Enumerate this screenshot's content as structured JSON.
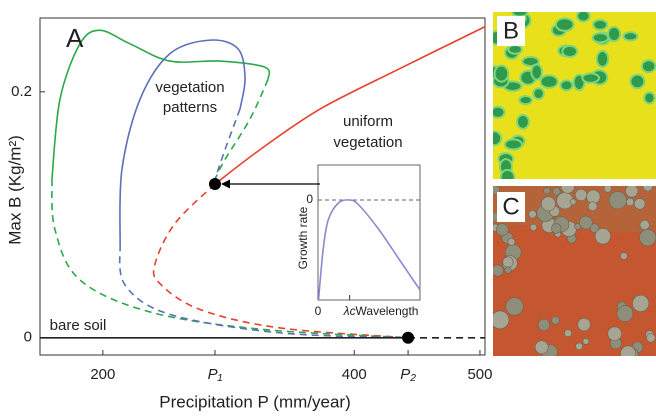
{
  "chart_data": [
    {
      "type": "line",
      "panel_label": "A",
      "x_label": "Precipitation P (mm/year)",
      "y_label": "Max B (Kg/m²)",
      "xlim": [
        150,
        504
      ],
      "ylim": [
        -0.014,
        0.26
      ],
      "xticks": [
        200,
        {
          "value": 289.2,
          "label": "P₁"
        },
        400,
        {
          "value": 442.8,
          "label": "P₂"
        },
        500
      ],
      "yticks": [
        0,
        0.2
      ],
      "annotations": [
        "vegetation",
        "patterns",
        "uniform",
        "vegetation",
        "bare soil"
      ],
      "series": [
        {
          "color": "#e8402c",
          "dashed": false,
          "x": [
            289.2,
            325.1,
            372.8,
            436.5,
            504.1
          ],
          "values": [
            0.125,
            0.153,
            0.186,
            0.219,
            0.253
          ]
        },
        {
          "color": "#e8402c",
          "dashed": true,
          "x": [
            289.2,
            257.4,
            241.5,
            245.5,
            277.3,
            341,
            442.8
          ],
          "values": [
            0.125,
            0.093,
            0.06,
            0.044,
            0.023,
            0.008,
            0
          ]
        },
        {
          "color": "#2aa84a",
          "dashed": false,
          "x": [
            159.5,
            165.9,
            181.8,
            197.7,
            221.6,
            253.4,
            293.2,
            329.0,
            331.4
          ],
          "values": [
            0.129,
            0.194,
            0.239,
            0.25,
            0.239,
            0.225,
            0.225,
            0.22,
            0.21
          ]
        },
        {
          "color": "#2aa84a",
          "dashed": true,
          "x": [
            331.4,
            317.1,
            297.2,
            289.2
          ],
          "values": [
            0.21,
            0.178,
            0.145,
            0.129
          ]
        },
        {
          "color": "#2aa84a",
          "dashed": true,
          "x": [
            159.5,
            161.9,
            181.8,
            237.5,
            325.1,
            442.8
          ],
          "values": [
            0.129,
            0.088,
            0.047,
            0.021,
            0.007,
            0
          ]
        },
        {
          "color": "#5b70b8",
          "dashed": false,
          "x": [
            213.7,
            215.2,
            229.6,
            253.4,
            285.3,
            307.5,
            313.1,
            309.1
          ],
          "values": [
            0.076,
            0.137,
            0.194,
            0.231,
            0.242,
            0.235,
            0.211,
            0.186
          ]
        },
        {
          "color": "#5b70b8",
          "dashed": true,
          "x": [
            309.1,
            297.2,
            289.2
          ],
          "values": [
            0.186,
            0.153,
            0.129
          ]
        },
        {
          "color": "#5b70b8",
          "dashed": true,
          "x": [
            213.7,
            217.6,
            253.4,
            341,
            442.8
          ],
          "values": [
            0.076,
            0.043,
            0.019,
            0.004,
            0
          ]
        },
        {
          "color": "#222222",
          "dashed": false,
          "x": [
            150,
            442.8
          ],
          "values": [
            0,
            0
          ]
        },
        {
          "color": "#222222",
          "dashed": true,
          "x": [
            442.8,
            504.1
          ],
          "values": [
            0,
            0
          ]
        }
      ],
      "markers": {
        "color": "#000000",
        "x": [
          289.2,
          442.8
        ],
        "values": [
          0.125,
          0
        ]
      }
    },
    {
      "type": "line",
      "x_label": "Wavelength",
      "y_label": "Growth rate",
      "xlim": [
        0,
        10
      ],
      "ylim": [
        -1,
        0.35
      ],
      "xticks": [
        0,
        {
          "value": 3.1,
          "label": "λc"
        }
      ],
      "yticks": [
        0
      ],
      "series": [
        {
          "color": "#8a8ad0",
          "dashed": false,
          "x": [
            0.05,
            0.5,
            1,
            2,
            3.1,
            4,
            6,
            8,
            10
          ],
          "values": [
            -1,
            -0.5,
            -0.2,
            -0.03,
            0,
            -0.05,
            -0.3,
            -0.6,
            -0.9
          ]
        }
      ]
    }
  ],
  "panels": [
    {
      "label": "B"
    },
    {
      "label": "C"
    }
  ]
}
